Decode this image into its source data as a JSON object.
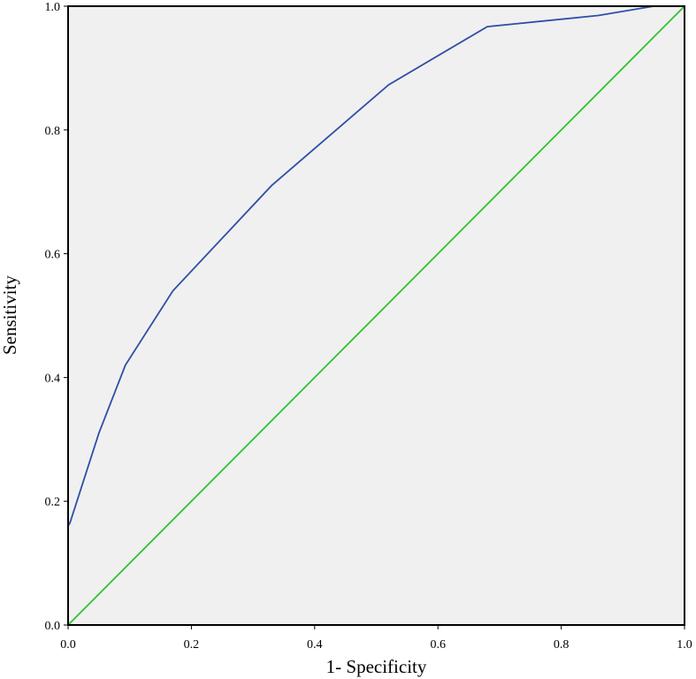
{
  "chart_data": {
    "type": "line",
    "title": "",
    "xlabel": "1- Specificity",
    "ylabel": "Sensitivity",
    "xlim": [
      0,
      1
    ],
    "ylim": [
      0,
      1
    ],
    "xticks": [
      "0.0",
      "0.2",
      "0.4",
      "0.6",
      "0.8",
      "1.0"
    ],
    "yticks": [
      "0.0",
      "0.2",
      "0.4",
      "0.6",
      "0.8",
      "1.0"
    ],
    "grid": false,
    "legend": "none",
    "background_color": "#f0f0f0",
    "series": [
      {
        "color": "#2e4fa8",
        "x": [
          0,
          0,
          0.003,
          0.05,
          0.093,
          0.17,
          0.33,
          0.52,
          0.68,
          0.86,
          0.95,
          1.0
        ],
        "y": [
          0,
          0.16,
          0.165,
          0.31,
          0.42,
          0.54,
          0.71,
          0.873,
          0.967,
          0.985,
          1.0,
          1.0
        ]
      },
      {
        "color": "#2ec22e",
        "x": [
          0,
          1
        ],
        "y": [
          0,
          1
        ]
      }
    ]
  }
}
